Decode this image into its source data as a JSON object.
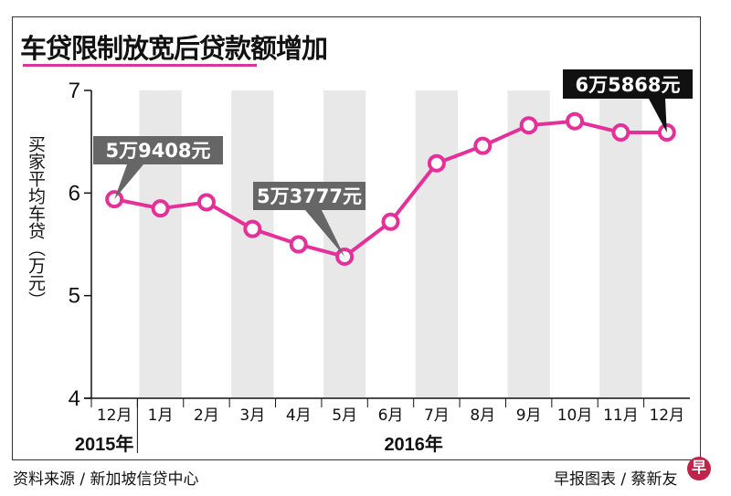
{
  "chart_data": {
    "type": "line",
    "title": "车贷限制放宽后贷款额增加",
    "ylabel": "买家平均车贷（万元）",
    "xlabel": "",
    "categories": [
      "12月",
      "1月",
      "2月",
      "3月",
      "4月",
      "5月",
      "6月",
      "7月",
      "8月",
      "9月",
      "10月",
      "11月",
      "12月"
    ],
    "years": [
      {
        "label": "2015年",
        "span": [
          0,
          0
        ]
      },
      {
        "label": "2016年",
        "span": [
          1,
          12
        ]
      }
    ],
    "series": [
      {
        "name": "买家平均车贷",
        "values": [
          5.94,
          5.85,
          5.91,
          5.65,
          5.5,
          5.38,
          5.72,
          6.29,
          6.46,
          6.66,
          6.7,
          6.59,
          6.59
        ]
      }
    ],
    "ylim": [
      4,
      7
    ],
    "yticks": [
      4,
      5,
      6,
      7
    ],
    "grid": false,
    "annotations": [
      {
        "index": 0,
        "text": "5万9408元",
        "style": "grey"
      },
      {
        "index": 5,
        "text": "5万3777元",
        "style": "grey"
      },
      {
        "index": 12,
        "text": "6万5868元",
        "style": "black"
      }
    ],
    "colors": {
      "line": "#e5309a",
      "band": "#e8e8e8",
      "grey_label": "#666666",
      "black_label": "#111111"
    }
  },
  "footer": {
    "source": "资料来源 / 新加坡信贷中心",
    "credit": "早报图表 / 蔡新友",
    "logo": "早"
  }
}
